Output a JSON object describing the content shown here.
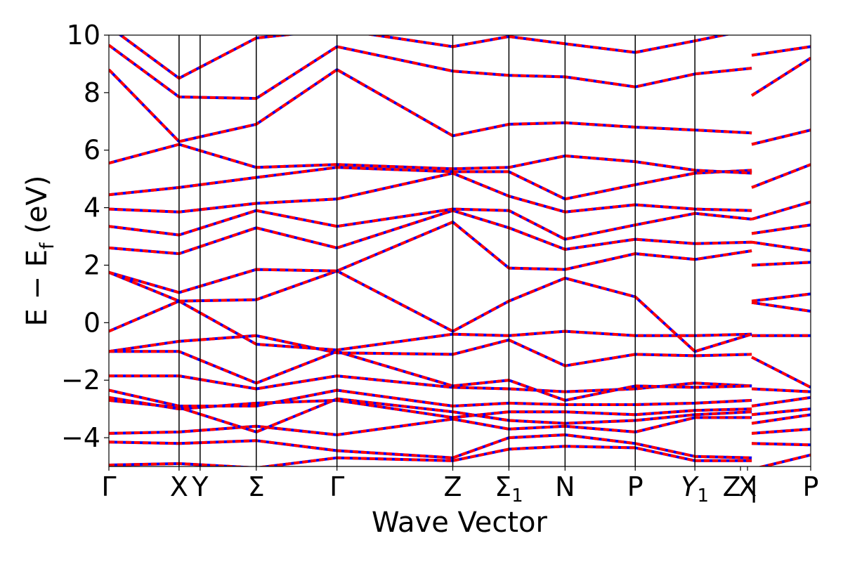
{
  "chart_data": {
    "type": "line",
    "title": "",
    "xlabel": "Wave Vector",
    "ylabel": {
      "prefix": "E − E",
      "sub": "f",
      "suffix": " (eV)"
    },
    "ylim": [
      -5,
      10
    ],
    "yticks": [
      -4,
      -2,
      0,
      2,
      4,
      6,
      8,
      10
    ],
    "grid": false,
    "legend": "none",
    "xlim": [
      0,
      10
    ],
    "kpoints": [
      {
        "x": 0.0,
        "label": "Γ",
        "line": false
      },
      {
        "x": 1.0,
        "label": "X",
        "line": true
      },
      {
        "x": 1.3,
        "label": "Y",
        "line": true
      },
      {
        "x": 2.1,
        "label": "Σ",
        "line": true
      },
      {
        "x": 3.25,
        "label": "Γ",
        "line": true
      },
      {
        "x": 4.9,
        "label": "Z",
        "line": true
      },
      {
        "x": 5.7,
        "label": "Σ",
        "sub": "1",
        "line": true
      },
      {
        "x": 6.5,
        "label": "N",
        "line": true
      },
      {
        "x": 7.5,
        "label": "P",
        "line": true
      },
      {
        "x": 8.35,
        "label": "Y",
        "sub": "1",
        "italic": true,
        "line": true
      },
      {
        "x": 9.0,
        "label": "Z | ",
        "line": false
      },
      {
        "x": 9.1,
        "label": "X",
        "line": false
      },
      {
        "x": 10.0,
        "label": "P",
        "line": false
      }
    ],
    "path_break_x": 9.16,
    "colors": {
      "reference": "#0000ff",
      "overlay": "#ff0000"
    },
    "series": [
      {
        "values": [
          [
            0,
            -4.95
          ],
          [
            1,
            -4.9
          ],
          [
            2.1,
            -5.05
          ],
          [
            3.25,
            -4.7
          ],
          [
            4.9,
            -4.8
          ],
          [
            5.7,
            -4.4
          ],
          [
            6.5,
            -4.3
          ],
          [
            7.5,
            -4.35
          ],
          [
            8.35,
            -4.8
          ],
          [
            9.16,
            -4.8
          ],
          [
            9.16,
            -5.1
          ],
          [
            10,
            -4.6
          ]
        ]
      },
      {
        "values": [
          [
            0,
            -4.15
          ],
          [
            1,
            -4.2
          ],
          [
            2.1,
            -4.1
          ],
          [
            3.25,
            -4.45
          ],
          [
            4.9,
            -4.7
          ],
          [
            5.7,
            -4.0
          ],
          [
            6.5,
            -3.9
          ],
          [
            7.5,
            -4.2
          ],
          [
            8.35,
            -4.65
          ],
          [
            9.16,
            -4.7
          ],
          [
            9.16,
            -4.2
          ],
          [
            10,
            -4.25
          ]
        ]
      },
      {
        "values": [
          [
            0,
            -3.85
          ],
          [
            1,
            -3.8
          ],
          [
            2.1,
            -3.6
          ],
          [
            3.25,
            -3.9
          ],
          [
            4.9,
            -3.35
          ],
          [
            5.7,
            -3.7
          ],
          [
            6.5,
            -3.6
          ],
          [
            7.5,
            -3.8
          ],
          [
            8.35,
            -3.3
          ],
          [
            9.16,
            -3.3
          ],
          [
            9.16,
            -3.85
          ],
          [
            10,
            -3.7
          ]
        ]
      },
      {
        "values": [
          [
            0,
            -2.7
          ],
          [
            1,
            -2.95
          ],
          [
            2.1,
            -3.8
          ],
          [
            3.25,
            -2.65
          ],
          [
            4.9,
            -3.1
          ],
          [
            5.7,
            -3.4
          ],
          [
            6.5,
            -3.5
          ],
          [
            7.5,
            -3.4
          ],
          [
            8.35,
            -3.2
          ],
          [
            9.16,
            -3.1
          ],
          [
            9.16,
            -3.5
          ],
          [
            10,
            -3.2
          ]
        ]
      },
      {
        "values": [
          [
            0,
            -2.6
          ],
          [
            1,
            -3.0
          ],
          [
            2.1,
            -2.8
          ],
          [
            3.25,
            -2.7
          ],
          [
            4.9,
            -3.3
          ],
          [
            5.7,
            -3.1
          ],
          [
            6.5,
            -3.1
          ],
          [
            7.5,
            -3.2
          ],
          [
            8.35,
            -3.05
          ],
          [
            9.16,
            -3.0
          ],
          [
            9.16,
            -3.2
          ],
          [
            10,
            -3.0
          ]
        ]
      },
      {
        "values": [
          [
            0,
            -2.35
          ],
          [
            1,
            -2.9
          ],
          [
            2.1,
            -2.9
          ],
          [
            3.25,
            -2.35
          ],
          [
            4.9,
            -2.9
          ],
          [
            5.7,
            -2.8
          ],
          [
            6.5,
            -2.85
          ],
          [
            7.5,
            -2.85
          ],
          [
            8.35,
            -2.8
          ],
          [
            9.16,
            -2.7
          ],
          [
            9.16,
            -2.9
          ],
          [
            10,
            -2.6
          ]
        ]
      },
      {
        "values": [
          [
            0,
            -1.85
          ],
          [
            1,
            -1.85
          ],
          [
            2.1,
            -2.3
          ],
          [
            3.25,
            -1.85
          ],
          [
            4.9,
            -2.25
          ],
          [
            5.7,
            -2.3
          ],
          [
            6.5,
            -2.4
          ],
          [
            7.5,
            -2.3
          ],
          [
            8.35,
            -2.1
          ],
          [
            9.16,
            -2.2
          ],
          [
            9.16,
            -2.3
          ],
          [
            10,
            -2.4
          ]
        ]
      },
      {
        "values": [
          [
            0,
            -1.0
          ],
          [
            1,
            -1.0
          ],
          [
            2.1,
            -2.1
          ],
          [
            3.25,
            -1.0
          ],
          [
            4.9,
            -2.2
          ],
          [
            5.7,
            -2.0
          ],
          [
            6.5,
            -2.7
          ],
          [
            7.5,
            -2.2
          ],
          [
            8.35,
            -2.25
          ],
          [
            9.16,
            -2.2
          ],
          [
            9.16,
            -1.2
          ],
          [
            10,
            -2.25
          ]
        ]
      },
      {
        "values": [
          [
            0,
            -1.0
          ],
          [
            1,
            -0.65
          ],
          [
            2.1,
            -0.45
          ],
          [
            3.25,
            -1.05
          ],
          [
            4.9,
            -1.1
          ],
          [
            5.7,
            -0.6
          ],
          [
            6.5,
            -1.5
          ],
          [
            7.5,
            -1.1
          ],
          [
            8.35,
            -1.15
          ],
          [
            9.16,
            -1.1
          ],
          [
            9.16,
            -0.45
          ],
          [
            10,
            -0.45
          ]
        ]
      },
      {
        "values": [
          [
            0,
            -0.3
          ],
          [
            1,
            0.75
          ],
          [
            2.1,
            -0.75
          ],
          [
            3.25,
            -0.95
          ],
          [
            4.9,
            -0.4
          ],
          [
            5.7,
            -0.45
          ],
          [
            6.5,
            -0.3
          ],
          [
            7.5,
            -0.45
          ],
          [
            8.35,
            -0.45
          ],
          [
            9.16,
            -0.4
          ],
          [
            9.16,
            0.7
          ],
          [
            10,
            0.4
          ]
        ]
      },
      {
        "values": [
          [
            0,
            1.75
          ],
          [
            1,
            0.75
          ],
          [
            2.1,
            0.8
          ],
          [
            3.25,
            1.8
          ],
          [
            4.9,
            -0.3
          ],
          [
            5.7,
            0.75
          ],
          [
            6.5,
            1.55
          ],
          [
            7.5,
            0.9
          ],
          [
            8.35,
            -1.0
          ],
          [
            9.16,
            -0.4
          ],
          [
            9.16,
            0.75
          ],
          [
            10,
            1.0
          ]
        ]
      },
      {
        "values": [
          [
            0,
            1.75
          ],
          [
            1,
            1.05
          ],
          [
            2.1,
            1.85
          ],
          [
            3.25,
            1.8
          ],
          [
            4.9,
            3.5
          ],
          [
            5.7,
            1.9
          ],
          [
            6.5,
            1.85
          ],
          [
            7.5,
            2.4
          ],
          [
            8.35,
            2.2
          ],
          [
            9.16,
            2.5
          ],
          [
            9.16,
            2.0
          ],
          [
            10,
            2.1
          ]
        ]
      },
      {
        "values": [
          [
            0,
            2.6
          ],
          [
            1,
            2.4
          ],
          [
            2.1,
            3.3
          ],
          [
            3.25,
            2.6
          ],
          [
            4.9,
            3.9
          ],
          [
            5.7,
            3.3
          ],
          [
            6.5,
            2.55
          ],
          [
            7.5,
            2.9
          ],
          [
            8.35,
            2.75
          ],
          [
            9.16,
            2.8
          ],
          [
            9.16,
            2.8
          ],
          [
            10,
            2.5
          ]
        ]
      },
      {
        "values": [
          [
            0,
            3.35
          ],
          [
            1,
            3.05
          ],
          [
            2.1,
            3.9
          ],
          [
            3.25,
            3.35
          ],
          [
            4.9,
            3.95
          ],
          [
            5.7,
            3.9
          ],
          [
            6.5,
            2.9
          ],
          [
            7.5,
            3.4
          ],
          [
            8.35,
            3.8
          ],
          [
            9.16,
            3.6
          ],
          [
            9.16,
            3.1
          ],
          [
            10,
            3.4
          ]
        ]
      },
      {
        "values": [
          [
            0,
            3.95
          ],
          [
            1,
            3.85
          ],
          [
            2.1,
            4.15
          ],
          [
            3.25,
            4.3
          ],
          [
            4.9,
            5.2
          ],
          [
            5.7,
            4.4
          ],
          [
            6.5,
            3.85
          ],
          [
            7.5,
            4.1
          ],
          [
            8.35,
            3.95
          ],
          [
            9.16,
            3.9
          ],
          [
            9.16,
            3.6
          ],
          [
            10,
            4.2
          ]
        ]
      },
      {
        "values": [
          [
            0,
            4.45
          ],
          [
            1,
            4.7
          ],
          [
            2.1,
            5.05
          ],
          [
            3.25,
            5.4
          ],
          [
            4.9,
            5.25
          ],
          [
            5.7,
            5.25
          ],
          [
            6.5,
            4.3
          ],
          [
            7.5,
            4.8
          ],
          [
            8.35,
            5.2
          ],
          [
            9.16,
            5.3
          ],
          [
            9.16,
            4.7
          ],
          [
            10,
            5.5
          ]
        ]
      },
      {
        "values": [
          [
            0,
            5.55
          ],
          [
            1,
            6.2
          ],
          [
            2.1,
            5.4
          ],
          [
            3.25,
            5.5
          ],
          [
            4.9,
            5.35
          ],
          [
            5.7,
            5.4
          ],
          [
            6.5,
            5.8
          ],
          [
            7.5,
            5.6
          ],
          [
            8.35,
            5.3
          ],
          [
            9.16,
            5.2
          ],
          [
            9.16,
            6.2
          ],
          [
            10,
            6.7
          ]
        ]
      },
      {
        "values": [
          [
            0,
            8.8
          ],
          [
            1,
            6.3
          ],
          [
            2.1,
            6.9
          ],
          [
            3.25,
            8.8
          ],
          [
            4.9,
            6.5
          ],
          [
            5.7,
            6.9
          ],
          [
            6.5,
            6.95
          ],
          [
            7.5,
            6.8
          ],
          [
            8.35,
            6.7
          ],
          [
            9.16,
            6.6
          ],
          [
            9.16,
            7.9
          ],
          [
            10,
            9.2
          ]
        ]
      },
      {
        "values": [
          [
            0,
            9.65
          ],
          [
            1,
            7.85
          ],
          [
            2.1,
            7.8
          ],
          [
            3.25,
            9.6
          ],
          [
            4.9,
            8.75
          ],
          [
            5.7,
            8.6
          ],
          [
            6.5,
            8.55
          ],
          [
            7.5,
            8.2
          ],
          [
            8.35,
            8.65
          ],
          [
            9.16,
            8.85
          ],
          [
            9.16,
            9.3
          ],
          [
            10,
            9.6
          ]
        ]
      },
      {
        "values": [
          [
            0,
            10.3
          ],
          [
            1,
            8.5
          ],
          [
            2.1,
            9.9
          ],
          [
            3.25,
            10.2
          ],
          [
            4.9,
            9.6
          ],
          [
            5.7,
            9.95
          ],
          [
            6.5,
            9.7
          ],
          [
            7.5,
            9.4
          ],
          [
            8.35,
            9.8
          ],
          [
            9.16,
            10.2
          ],
          [
            9.16,
            10.4
          ],
          [
            10,
            10.3
          ]
        ]
      }
    ]
  }
}
